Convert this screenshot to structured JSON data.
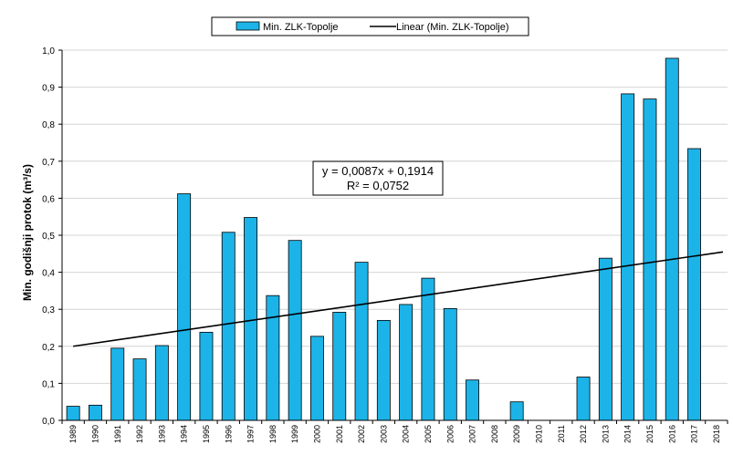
{
  "chart_data": {
    "type": "bar",
    "title": "",
    "xlabel": "",
    "ylabel": "Min. godišnji protok (m³/s)",
    "ylim": [
      0,
      1.0
    ],
    "yticks": [
      "0,0",
      "0,1",
      "0,2",
      "0,3",
      "0,4",
      "0,5",
      "0,6",
      "0,7",
      "0,8",
      "0,9",
      "1,0"
    ],
    "categories": [
      "1989",
      "1990",
      "1991",
      "1992",
      "1993",
      "1994",
      "1995",
      "1996",
      "1997",
      "1998",
      "1999",
      "2000",
      "2001",
      "2002",
      "2003",
      "2004",
      "2005",
      "2006",
      "2007",
      "2008",
      "2009",
      "2010",
      "2011",
      "2012",
      "2013",
      "2014",
      "2015",
      "2016",
      "2017",
      "2018"
    ],
    "series": [
      {
        "name": "Min. ZLK-Topolje",
        "color": "#1CB4E8",
        "values": [
          0.038,
          0.041,
          0.195,
          0.166,
          0.202,
          0.612,
          0.238,
          0.508,
          0.548,
          0.337,
          0.486,
          0.227,
          0.292,
          0.427,
          0.27,
          0.313,
          0.384,
          0.302,
          0.109,
          0,
          0.05,
          0,
          0,
          0.117,
          0.438,
          0.882,
          0.868,
          0.978,
          0.734,
          0
        ]
      }
    ],
    "trendline": {
      "name": "Linear (Min. ZLK-Topolje)",
      "slope": 0.0087,
      "intercept": 0.1914,
      "equation": "y = 0,0087x + 0,1914",
      "r_squared": "R² = 0,0752"
    },
    "legend": "top-center",
    "grid": true
  }
}
